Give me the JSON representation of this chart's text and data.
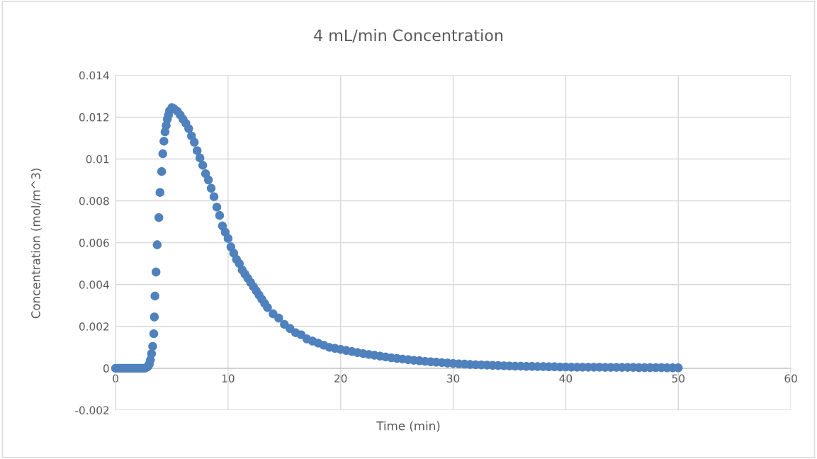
{
  "chart_data": {
    "type": "scatter",
    "title": "4 mL/min Concentration",
    "xlabel": "Time (min)",
    "ylabel": "Concentration (mol/m^3)",
    "xlim": [
      0,
      60
    ],
    "xticks": [
      0,
      10,
      20,
      30,
      40,
      50,
      60
    ],
    "ylim": [
      -0.002,
      0.014
    ],
    "yticks": [
      -0.002,
      0,
      0.002,
      0.004,
      0.006,
      0.008,
      0.01,
      0.012,
      0.014
    ],
    "grid": true,
    "marker": "circle",
    "series": [
      {
        "color": "#4f81bd",
        "x": [
          0,
          0.2,
          0.4,
          0.6,
          0.8,
          1.0,
          1.2,
          1.4,
          1.6,
          1.8,
          2.0,
          2.2,
          2.4,
          2.6,
          2.8,
          2.9,
          3.0,
          3.1,
          3.2,
          3.3,
          3.4,
          3.45,
          3.5,
          3.6,
          3.7,
          3.85,
          3.95,
          4.1,
          4.2,
          4.3,
          4.4,
          4.5,
          4.6,
          4.7,
          4.8,
          5.0,
          5.2,
          5.5,
          5.75,
          6.0,
          6.25,
          6.5,
          6.75,
          7.0,
          7.25,
          7.5,
          7.75,
          8.0,
          8.25,
          8.5,
          8.75,
          9.0,
          9.25,
          9.5,
          9.75,
          10.0,
          10.25,
          10.5,
          10.75,
          11.0,
          11.25,
          11.5,
          11.75,
          12.0,
          12.25,
          12.5,
          12.75,
          13.0,
          13.25,
          13.5,
          14.0,
          14.5,
          15.0,
          15.5,
          16.0,
          16.5,
          17.0,
          17.5,
          18.0,
          18.5,
          19.0,
          19.5,
          20.0,
          20.5,
          21.0,
          21.5,
          22.0,
          22.5,
          23.0,
          23.5,
          24.0,
          24.5,
          25.0,
          25.5,
          26.0,
          26.5,
          27.0,
          27.5,
          28.0,
          28.5,
          29.0,
          29.5,
          30.0,
          30.5,
          31.0,
          31.5,
          32.0,
          32.5,
          33.0,
          33.5,
          34.0,
          34.5,
          35.0,
          35.5,
          36.0,
          36.5,
          37.0,
          37.5,
          38.0,
          38.5,
          39.0,
          39.5,
          40.0,
          40.5,
          41.0,
          41.5,
          42.0,
          42.5,
          43.0,
          43.5,
          44.0,
          44.5,
          45.0,
          45.5,
          46.0,
          46.5,
          47.0,
          47.5,
          48.0,
          48.5,
          49.0,
          49.5,
          50.0
        ],
        "values": [
          0,
          0,
          0,
          0,
          0,
          0,
          0,
          0,
          0,
          0,
          0,
          0,
          0,
          0,
          5e-05,
          0.0001,
          0.0002,
          0.0004,
          0.0007,
          0.00105,
          0.00165,
          0.00245,
          0.00345,
          0.0046,
          0.0059,
          0.0072,
          0.0084,
          0.0094,
          0.01025,
          0.01085,
          0.0113,
          0.0116,
          0.0119,
          0.0121,
          0.0123,
          0.01245,
          0.0124,
          0.01228,
          0.0121,
          0.0119,
          0.0117,
          0.01145,
          0.0111,
          0.0108,
          0.0104,
          0.01005,
          0.0097,
          0.0093,
          0.009,
          0.0086,
          0.0082,
          0.0077,
          0.0073,
          0.0068,
          0.0065,
          0.0062,
          0.0058,
          0.0055,
          0.0052,
          0.005,
          0.0047,
          0.0045,
          0.0043,
          0.0041,
          0.0039,
          0.0037,
          0.0035,
          0.0033,
          0.0031,
          0.0029,
          0.0026,
          0.0024,
          0.0021,
          0.0019,
          0.0017,
          0.0016,
          0.0014,
          0.0013,
          0.0012,
          0.0011,
          0.001,
          0.00095,
          0.0009,
          0.00085,
          0.0008,
          0.00075,
          0.0007,
          0.00066,
          0.00062,
          0.00058,
          0.00054,
          0.0005,
          0.00047,
          0.00044,
          0.00041,
          0.00038,
          0.00036,
          0.00033,
          0.00031,
          0.00029,
          0.00027,
          0.00025,
          0.00023,
          0.00021,
          0.0002,
          0.00018,
          0.00017,
          0.00016,
          0.00015,
          0.00014,
          0.00013,
          0.00012,
          0.00011,
          0.0001,
          0.0001,
          9e-05,
          9e-05,
          8e-05,
          8e-05,
          7e-05,
          7e-05,
          6e-05,
          6e-05,
          5e-05,
          5e-05,
          5e-05,
          5e-05,
          5e-05,
          5e-05,
          4e-05,
          4e-05,
          4e-05,
          4e-05,
          4e-05,
          4e-05,
          3e-05,
          3e-05,
          3e-05,
          3e-05,
          3e-05,
          2e-05,
          2e-05,
          2e-05
        ]
      }
    ]
  }
}
